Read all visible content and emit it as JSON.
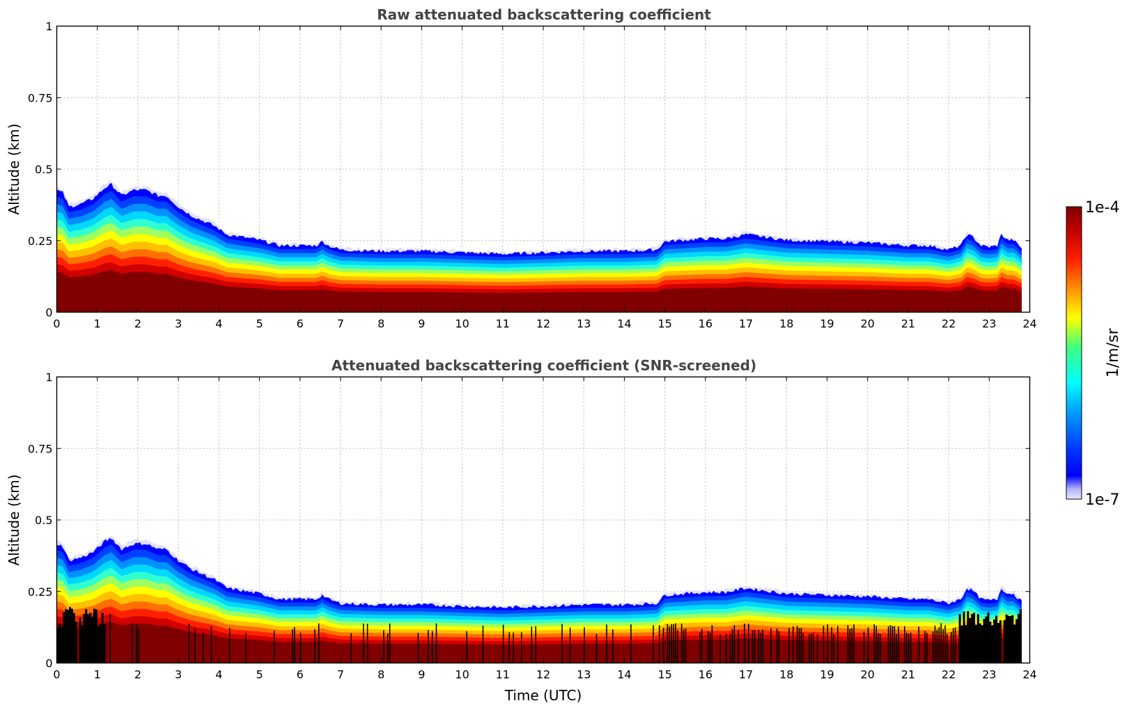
{
  "chart_data": [
    {
      "type": "heatmap",
      "title": "Raw attenuated backscattering coefficient",
      "xlabel": "",
      "ylabel": "Altitude (km)",
      "xlim": [
        0,
        24
      ],
      "ylim": [
        0,
        1
      ],
      "xticks": [
        "0",
        "1",
        "2",
        "3",
        "4",
        "5",
        "6",
        "7",
        "8",
        "9",
        "10",
        "11",
        "12",
        "13",
        "14",
        "15",
        "16",
        "17",
        "18",
        "19",
        "20",
        "21",
        "22",
        "23",
        "24"
      ],
      "yticks": [
        "0",
        "0.25",
        "0.5",
        "0.75",
        "1"
      ],
      "grid": true,
      "data_end_time": 23.8,
      "layer_top_km": {
        "time": [
          0,
          0.15,
          0.3,
          0.6,
          0.9,
          1.2,
          1.35,
          1.6,
          1.9,
          2.2,
          2.5,
          2.7,
          3.0,
          3.3,
          3.6,
          3.9,
          4.2,
          4.6,
          5.0,
          5.5,
          6.0,
          6.4,
          6.55,
          6.7,
          7.0,
          8.0,
          9.0,
          10.0,
          11.0,
          12.0,
          13.0,
          14.0,
          14.8,
          15.0,
          15.5,
          16.0,
          16.5,
          17.0,
          17.5,
          18.0,
          19.0,
          20.0,
          21.0,
          21.5,
          22.0,
          22.3,
          22.45,
          22.6,
          22.8,
          23.0,
          23.2,
          23.3,
          23.45,
          23.6,
          23.8
        ],
        "top": [
          0.42,
          0.41,
          0.36,
          0.37,
          0.39,
          0.43,
          0.44,
          0.4,
          0.42,
          0.42,
          0.4,
          0.4,
          0.36,
          0.33,
          0.31,
          0.29,
          0.26,
          0.25,
          0.24,
          0.22,
          0.22,
          0.22,
          0.235,
          0.22,
          0.205,
          0.2,
          0.2,
          0.195,
          0.19,
          0.195,
          0.2,
          0.2,
          0.205,
          0.235,
          0.24,
          0.245,
          0.245,
          0.26,
          0.25,
          0.24,
          0.235,
          0.23,
          0.22,
          0.22,
          0.205,
          0.22,
          0.26,
          0.25,
          0.22,
          0.215,
          0.22,
          0.26,
          0.24,
          0.24,
          0.21
        ]
      }
    },
    {
      "type": "heatmap",
      "title": "Attenuated backscattering coefficient (SNR-screened)",
      "xlabel": "Time (UTC)",
      "ylabel": "Altitude (km)",
      "xlim": [
        0,
        24
      ],
      "ylim": [
        0,
        1
      ],
      "xticks": [
        "0",
        "1",
        "2",
        "3",
        "4",
        "5",
        "6",
        "7",
        "8",
        "9",
        "10",
        "11",
        "12",
        "13",
        "14",
        "15",
        "16",
        "17",
        "18",
        "19",
        "20",
        "21",
        "22",
        "23",
        "24"
      ],
      "yticks": [
        "0",
        "0.25",
        "0.5",
        "0.75",
        "1"
      ],
      "grid": true,
      "data_end_time": 23.8,
      "screened_near_surface": true
    }
  ],
  "colorbar": {
    "label": "1/m/sr",
    "max_label": "1e-4",
    "min_label": "1e-7",
    "scale": "log",
    "colormap": "jet"
  }
}
